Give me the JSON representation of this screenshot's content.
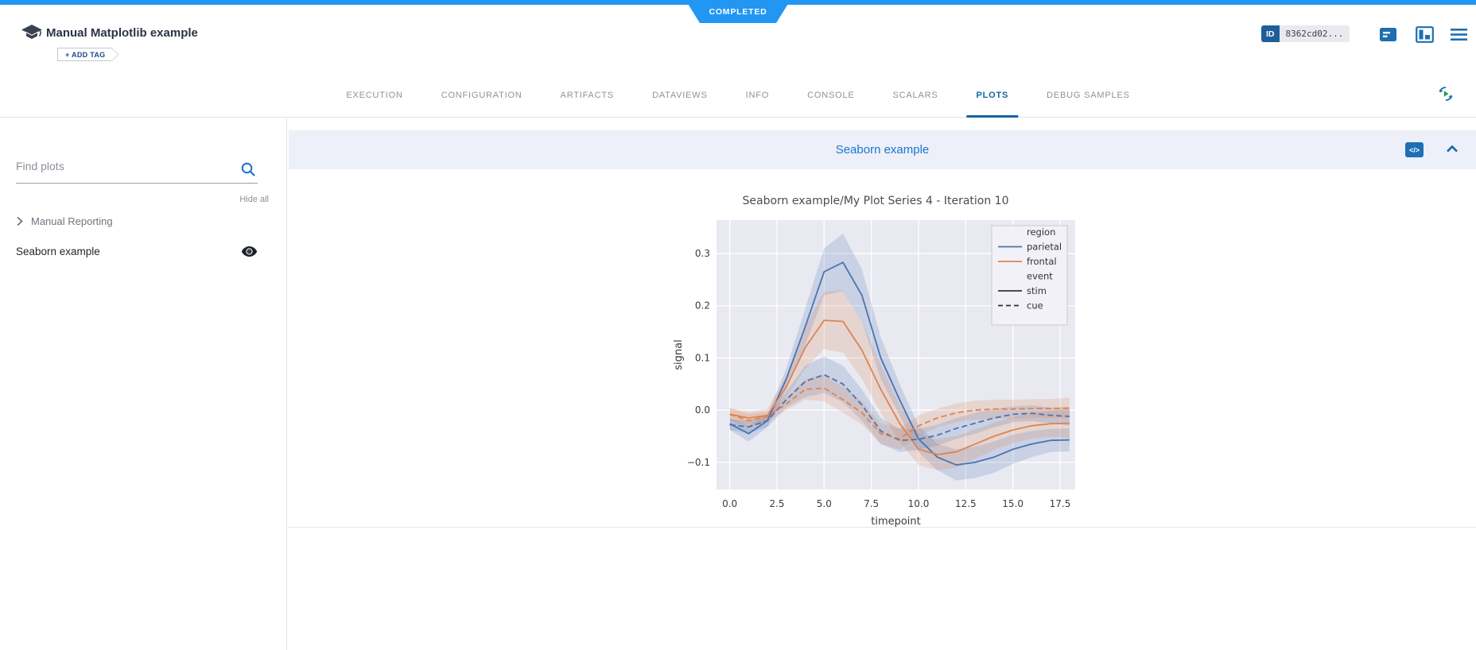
{
  "status_ribbon": {
    "label": "COMPLETED",
    "color": "#2196f3"
  },
  "header": {
    "title": "Manual Matplotlib example",
    "add_tag_label": "+ ADD TAG",
    "id_label": "ID",
    "id_value": "8362cd02...",
    "code_icon_glyph": "</>"
  },
  "tabs": {
    "items": [
      "EXECUTION",
      "CONFIGURATION",
      "ARTIFACTS",
      "DATAVIEWS",
      "INFO",
      "CONSOLE",
      "SCALARS",
      "PLOTS",
      "DEBUG SAMPLES"
    ],
    "active": "PLOTS"
  },
  "sidebar": {
    "search_placeholder": "Find plots",
    "hide_all_label": "Hide all",
    "group_label": "Manual Reporting",
    "item_label": "Seaborn example"
  },
  "panel": {
    "title": "Seaborn example"
  },
  "colors": {
    "accent_blue": "#1565a7",
    "status_blue": "#2196f3",
    "parietal": "#4c72b0",
    "frontal": "#dd8452"
  },
  "chart_data": {
    "type": "line",
    "title": "Seaborn example/My Plot Series 4 - Iteration 10",
    "xlabel": "timepoint",
    "ylabel": "signal",
    "xlim": [
      -0.7,
      18.3
    ],
    "ylim": [
      -0.152,
      0.364
    ],
    "background": "#e9e9f2",
    "grid": true,
    "grid_color": "#ffffff",
    "x_ticks": {
      "values": [
        0,
        2.5,
        5,
        7.5,
        10,
        12.5,
        15,
        17.5
      ],
      "labels": [
        "0.0",
        "2.5",
        "5.0",
        "7.5",
        "10.0",
        "12.5",
        "15.0",
        "17.5"
      ]
    },
    "y_ticks": {
      "values": [
        -0.1,
        0,
        0.1,
        0.2,
        0.3
      ],
      "labels": [
        "−0.1",
        "0.0",
        "0.1",
        "0.2",
        "0.3"
      ]
    },
    "x": [
      0,
      1,
      2,
      3,
      4,
      5,
      6,
      7,
      8,
      9,
      10,
      11,
      12,
      13,
      14,
      15,
      16,
      17,
      18
    ],
    "series": [
      {
        "name": "parietal-stim",
        "region": "parietal",
        "event": "stim",
        "color": "#4c72b0",
        "dashed": false,
        "values": [
          -0.026,
          -0.045,
          -0.02,
          0.06,
          0.16,
          0.265,
          0.283,
          0.22,
          0.1,
          0.02,
          -0.055,
          -0.09,
          -0.105,
          -0.1,
          -0.09,
          -0.075,
          -0.065,
          -0.058,
          -0.057
        ],
        "band": [
          0.012,
          0.015,
          0.012,
          0.02,
          0.035,
          0.045,
          0.055,
          0.05,
          0.04,
          0.03,
          0.025,
          0.025,
          0.03,
          0.03,
          0.03,
          0.028,
          0.025,
          0.022,
          0.022
        ]
      },
      {
        "name": "frontal-stim",
        "region": "frontal",
        "event": "stim",
        "color": "#dd8452",
        "dashed": false,
        "values": [
          -0.008,
          -0.015,
          -0.01,
          0.045,
          0.12,
          0.172,
          0.17,
          0.115,
          0.04,
          -0.025,
          -0.075,
          -0.085,
          -0.08,
          -0.065,
          -0.05,
          -0.038,
          -0.03,
          -0.026,
          -0.025
        ],
        "band": [
          0.012,
          0.012,
          0.012,
          0.02,
          0.04,
          0.055,
          0.06,
          0.055,
          0.045,
          0.035,
          0.03,
          0.03,
          0.03,
          0.028,
          0.026,
          0.025,
          0.025,
          0.025,
          0.028
        ]
      },
      {
        "name": "parietal-cue",
        "region": "parietal",
        "event": "cue",
        "color": "#4c72b0",
        "dashed": true,
        "values": [
          -0.028,
          -0.032,
          -0.02,
          0.02,
          0.055,
          0.068,
          0.05,
          0.01,
          -0.04,
          -0.058,
          -0.056,
          -0.048,
          -0.035,
          -0.025,
          -0.015,
          -0.008,
          -0.006,
          -0.01,
          -0.012
        ],
        "band": [
          0.01,
          0.012,
          0.012,
          0.015,
          0.03,
          0.035,
          0.035,
          0.03,
          0.025,
          0.022,
          0.02,
          0.02,
          0.02,
          0.02,
          0.018,
          0.015,
          0.015,
          0.015,
          0.018
        ]
      },
      {
        "name": "frontal-cue",
        "region": "frontal",
        "event": "cue",
        "color": "#dd8452",
        "dashed": true,
        "values": [
          -0.008,
          -0.02,
          -0.012,
          0.012,
          0.04,
          0.042,
          0.02,
          -0.005,
          -0.045,
          -0.055,
          -0.03,
          -0.015,
          -0.005,
          0.0,
          0.002,
          0.002,
          0.003,
          0.003,
          0.004
        ],
        "band": [
          0.012,
          0.012,
          0.01,
          0.012,
          0.02,
          0.025,
          0.025,
          0.022,
          0.02,
          0.02,
          0.02,
          0.018,
          0.018,
          0.018,
          0.018,
          0.018,
          0.018,
          0.018,
          0.02
        ]
      }
    ],
    "legend": {
      "position": "upper right",
      "entries": [
        {
          "type": "title",
          "label": "region"
        },
        {
          "type": "line",
          "label": "parietal",
          "color": "#4c72b0",
          "dashed": false
        },
        {
          "type": "line",
          "label": "frontal",
          "color": "#dd8452",
          "dashed": false
        },
        {
          "type": "title",
          "label": "event"
        },
        {
          "type": "line",
          "label": "stim",
          "color": "#333333",
          "dashed": false
        },
        {
          "type": "line",
          "label": "cue",
          "color": "#333333",
          "dashed": true
        }
      ]
    }
  }
}
